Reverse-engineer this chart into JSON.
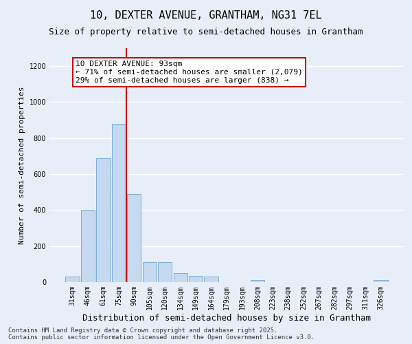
{
  "title_line1": "10, DEXTER AVENUE, GRANTHAM, NG31 7EL",
  "title_line2": "Size of property relative to semi-detached houses in Grantham",
  "xlabel": "Distribution of semi-detached houses by size in Grantham",
  "ylabel": "Number of semi-detached properties",
  "categories": [
    "31sqm",
    "46sqm",
    "61sqm",
    "75sqm",
    "90sqm",
    "105sqm",
    "120sqm",
    "134sqm",
    "149sqm",
    "164sqm",
    "179sqm",
    "193sqm",
    "208sqm",
    "223sqm",
    "238sqm",
    "252sqm",
    "267sqm",
    "282sqm",
    "297sqm",
    "311sqm",
    "326sqm"
  ],
  "values": [
    30,
    400,
    690,
    880,
    490,
    110,
    110,
    50,
    35,
    30,
    0,
    0,
    10,
    0,
    0,
    0,
    0,
    0,
    0,
    0,
    10
  ],
  "bar_color": "#c5d9f1",
  "bar_edge_color": "#7bafd4",
  "vline_index": 3.5,
  "vline_color": "#cc0000",
  "annotation_text_line1": "10 DEXTER AVENUE: 93sqm",
  "annotation_text_line2": "← 71% of semi-detached houses are smaller (2,079)",
  "annotation_text_line3": "29% of semi-detached houses are larger (838) →",
  "ylim": [
    0,
    1300
  ],
  "yticks": [
    0,
    200,
    400,
    600,
    800,
    1000,
    1200
  ],
  "background_color": "#e8eef8",
  "grid_color": "#ffffff",
  "footnote": "Contains HM Land Registry data © Crown copyright and database right 2025.\nContains public sector information licensed under the Open Government Licence v3.0.",
  "title_fontsize": 11,
  "subtitle_fontsize": 9,
  "xlabel_fontsize": 9,
  "ylabel_fontsize": 8,
  "tick_fontsize": 7,
  "annot_fontsize": 8,
  "footnote_fontsize": 6.5
}
